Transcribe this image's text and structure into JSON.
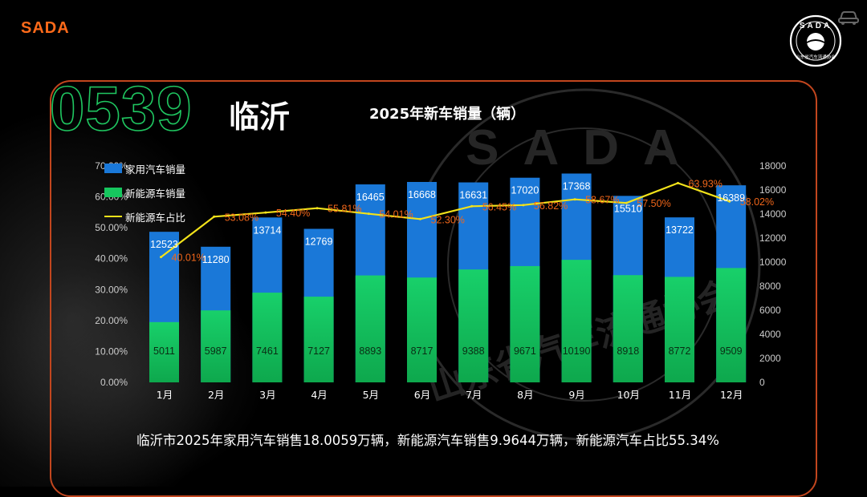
{
  "brand": "SADA",
  "logo": {
    "ring_text": "SADA",
    "sub_text": "山东省汽车流通协会"
  },
  "watermark": {
    "ring_text": "SADA",
    "sub_text": "山东省汽车流通协会"
  },
  "city": {
    "code": "0539",
    "name": "临沂"
  },
  "summary": "临沂市2025年家用汽车销售18.0059万辆，新能源汽车销售9.9644万辆，新能源汽车占比55.34%",
  "colors": {
    "accent": "#ff6a1a",
    "family": "#1a78d8",
    "nev": "#16c65e",
    "share": "#f2e21a",
    "share_label": "#f0661a",
    "frame": "#c2461e"
  },
  "chart_data": {
    "type": "bar",
    "title": "2025年新车销量（辆）",
    "categories": [
      "1月",
      "2月",
      "3月",
      "4月",
      "5月",
      "6月",
      "7月",
      "8月",
      "9月",
      "10月",
      "11月",
      "12月"
    ],
    "series": [
      {
        "name": "家用汽车销量",
        "type": "bar",
        "axis": "right",
        "values": [
          12523,
          11280,
          13714,
          12769,
          16465,
          16668,
          16631,
          17020,
          17368,
          15510,
          13722,
          16389
        ]
      },
      {
        "name": "新能源车销量",
        "type": "bar",
        "axis": "right",
        "values": [
          5011,
          5987,
          7461,
          7127,
          8893,
          8717,
          9388,
          9671,
          10190,
          8918,
          8772,
          9509
        ]
      },
      {
        "name": "新能源车占比",
        "type": "line",
        "axis": "left",
        "values": [
          40.01,
          53.08,
          54.4,
          55.81,
          54.01,
          52.3,
          56.45,
          56.82,
          58.67,
          57.5,
          63.93,
          58.02
        ],
        "labels": [
          "40.01%",
          "53.08%",
          "54.40%",
          "55.81%",
          "54.01%",
          "52.30%",
          "56.45%",
          "56.82%",
          "58.67%",
          "57.50%",
          "63.93%",
          "58.02%"
        ]
      }
    ],
    "y_left": {
      "range": [
        0,
        70
      ],
      "ticks": [
        "0.00%",
        "10.00%",
        "20.00%",
        "30.00%",
        "40.00%",
        "50.00%",
        "60.00%",
        "70.00%"
      ]
    },
    "y_right": {
      "range": [
        0,
        18000
      ],
      "ticks": [
        "0",
        "2000",
        "4000",
        "6000",
        "8000",
        "10000",
        "12000",
        "14000",
        "16000",
        "18000"
      ]
    },
    "legend": [
      "家用汽车销量",
      "新能源车销量",
      "新能源车占比"
    ],
    "legend_position": "top-left"
  }
}
